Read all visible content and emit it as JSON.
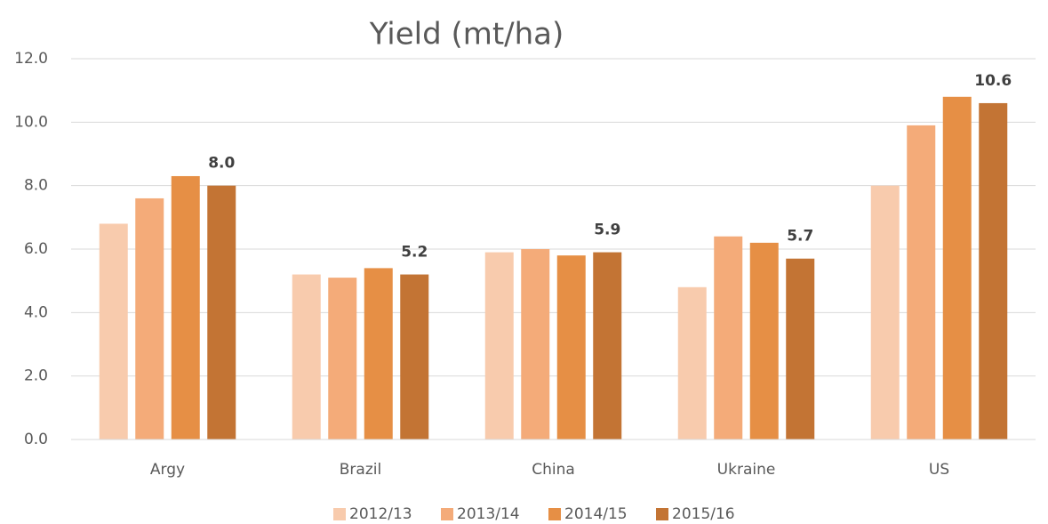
{
  "chart_data": {
    "type": "bar",
    "title": "Yield (mt/ha)",
    "categories": [
      "Argy",
      "Brazil",
      "China",
      "Ukraine",
      "US"
    ],
    "series": [
      {
        "name": "2012/13",
        "color": "#f8cbad",
        "values": [
          6.8,
          5.2,
          5.9,
          4.8,
          8.0
        ]
      },
      {
        "name": "2013/14",
        "color": "#f4ab79",
        "values": [
          7.6,
          5.1,
          6.0,
          6.4,
          9.9
        ]
      },
      {
        "name": "2014/15",
        "color": "#e68f45",
        "values": [
          8.3,
          5.4,
          5.8,
          6.2,
          10.8
        ]
      },
      {
        "name": "2015/16",
        "color": "#c37434",
        "values": [
          8.0,
          5.2,
          5.9,
          5.7,
          10.6
        ],
        "value_labels": [
          "8.0",
          "5.2",
          "5.9",
          "5.7",
          "10.6"
        ]
      }
    ],
    "ylim": [
      0,
      12
    ],
    "yticks": [
      {
        "value": 0,
        "label": "0.0"
      },
      {
        "value": 2,
        "label": "2.0"
      },
      {
        "value": 4,
        "label": "4.0"
      },
      {
        "value": 6,
        "label": "6.0"
      },
      {
        "value": 8,
        "label": "8.0"
      },
      {
        "value": 10,
        "label": "10.0"
      },
      {
        "value": 12,
        "label": "12.0"
      }
    ],
    "grid": true,
    "legend": "bottom"
  }
}
